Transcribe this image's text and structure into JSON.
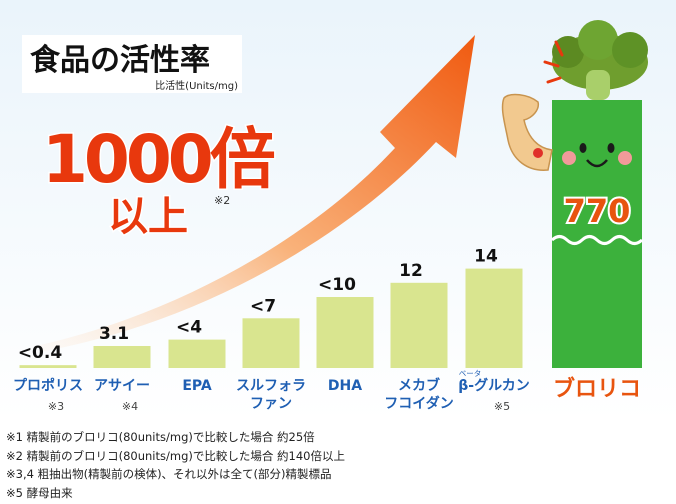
{
  "chart_data": {
    "type": "bar",
    "title": "食品の活性率",
    "subtitle": "比活性(Units/mg)",
    "headline": {
      "value": "1000倍",
      "line2": "以上",
      "note": "※2"
    },
    "categories": [
      "プロポリス",
      "アサイー",
      "EPA",
      "スルフォラファン",
      "DHA",
      "メカブフコイダン",
      "β-グルカン",
      "ブロリコ"
    ],
    "category_display": [
      [
        "プロポリス"
      ],
      [
        "アサイー"
      ],
      [
        "EPA"
      ],
      [
        "スルフォラ",
        "ファン"
      ],
      [
        "DHA"
      ],
      [
        "メカブ",
        "フコイダン"
      ],
      [
        "β-グルカン"
      ],
      [
        "ブロリコ"
      ]
    ],
    "category_notes": [
      "※3",
      "※4",
      "",
      "",
      "",
      "",
      "※5",
      ""
    ],
    "ruby": {
      "text": "ベータ",
      "index": 6
    },
    "value_labels": [
      "<0.4",
      "3.1",
      "<4",
      "<7",
      "<10",
      "12",
      "14",
      "770"
    ],
    "values": [
      0.4,
      3.1,
      4,
      7,
      10,
      12,
      14,
      770
    ],
    "bar_color": "#d9e58f",
    "highlight_color": "#3cb13c",
    "highlight_label_color": "#e8540f",
    "arrow_color": "#f26a1b",
    "xlabel": "",
    "ylabel": ""
  },
  "footnotes": [
    "※1 精製前のブロリコ(80units/mg)で比較した場合 約25倍",
    "※2 精製前のブロリコ(80units/mg)で比較した場合 約140倍以上",
    "※3,4 粗抽出物(精製前の検体)、それ以外は全て(部分)精製標品",
    "※5 酵母由来"
  ]
}
